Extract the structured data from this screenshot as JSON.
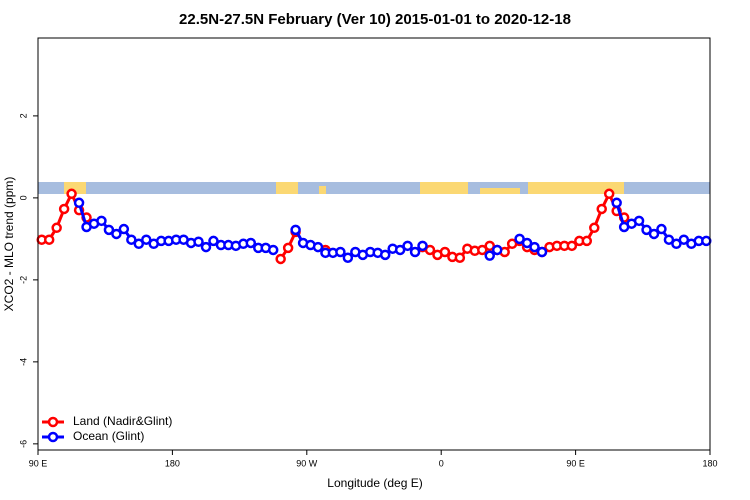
{
  "chart_data": {
    "type": "line",
    "title": "22.5N-27.5N February (Ver 10)   2015-01-01 to 2020-12-18",
    "x_label": "Longitude (deg E)",
    "y_label": "XCO2 - MLO trend (ppm)",
    "x": [
      92.5,
      97.5,
      102.5,
      107.5,
      112.5,
      117.5,
      122.5,
      127.5,
      132.5,
      137.5,
      142.5,
      147.5,
      152.5,
      157.5,
      162.5,
      167.5,
      172.5,
      177.5,
      182.5,
      187.5,
      192.5,
      197.5,
      202.5,
      207.5,
      212.5,
      217.5,
      222.5,
      227.5,
      232.5,
      237.5,
      242.5,
      247.5,
      252.5,
      257.5,
      262.5,
      267.5,
      272.5,
      277.5,
      282.5,
      287.5,
      292.5,
      297.5,
      302.5,
      307.5,
      312.5,
      317.5,
      322.5,
      327.5,
      332.5,
      337.5,
      342.5,
      347.5,
      352.5,
      357.5,
      362.5,
      367.5,
      372.5,
      377.5,
      382.5,
      387.5,
      392.5,
      397.5,
      402.5,
      407.5,
      412.5,
      417.5,
      422.5,
      427.5,
      432.5,
      437.5,
      442.5,
      447.5,
      452.5,
      457.5,
      462.5,
      467.5,
      472.5,
      477.5,
      482.5,
      487.5,
      492.5,
      497.5,
      502.5,
      507.5,
      512.5,
      517.5,
      522.5,
      527.5,
      532.5,
      537.5
    ],
    "series": [
      {
        "name": "Land (Nadir&Glint)",
        "color": "#ff0000",
        "values": [
          -1.02,
          -1.02,
          -0.73,
          -0.27,
          0.1,
          -0.3,
          -0.48,
          null,
          null,
          null,
          null,
          null,
          null,
          null,
          null,
          null,
          null,
          null,
          null,
          null,
          null,
          null,
          null,
          null,
          null,
          null,
          null,
          null,
          null,
          null,
          null,
          null,
          -1.49,
          -1.22,
          -0.83,
          null,
          null,
          null,
          -1.27,
          null,
          null,
          null,
          null,
          null,
          null,
          null,
          null,
          null,
          null,
          null,
          null,
          -1.2,
          -1.27,
          -1.39,
          -1.32,
          -1.44,
          -1.46,
          -1.24,
          -1.29,
          -1.27,
          -1.17,
          -1.27,
          -1.32,
          -1.12,
          -1.05,
          -1.2,
          -1.27,
          -1.32,
          -1.2,
          -1.17,
          -1.17,
          -1.17,
          -1.05,
          -1.05,
          -0.73,
          -0.27,
          0.1,
          -0.32,
          -0.48,
          null,
          null,
          null,
          null,
          null,
          null,
          null,
          null,
          null,
          null,
          null
        ]
      },
      {
        "name": "Ocean (Glint)",
        "color": "#0000ff",
        "values": [
          null,
          null,
          null,
          null,
          null,
          -0.12,
          -0.71,
          -0.63,
          -0.56,
          -0.78,
          -0.88,
          -0.76,
          -1.02,
          -1.12,
          -1.02,
          -1.12,
          -1.05,
          -1.05,
          -1.02,
          -1.02,
          -1.1,
          -1.07,
          -1.2,
          -1.05,
          -1.15,
          -1.15,
          -1.17,
          -1.12,
          -1.1,
          -1.22,
          -1.22,
          -1.27,
          null,
          null,
          -0.78,
          -1.1,
          -1.15,
          -1.2,
          -1.34,
          -1.34,
          -1.32,
          -1.46,
          -1.32,
          -1.39,
          -1.32,
          -1.34,
          -1.39,
          -1.24,
          -1.27,
          -1.17,
          -1.32,
          -1.17,
          null,
          null,
          null,
          null,
          null,
          null,
          null,
          null,
          -1.41,
          -1.27,
          null,
          null,
          -1.0,
          -1.1,
          -1.2,
          -1.32,
          null,
          null,
          null,
          null,
          null,
          null,
          null,
          null,
          null,
          -0.12,
          -0.71,
          -0.63,
          -0.56,
          -0.78,
          -0.88,
          -0.76,
          -1.02,
          -1.12,
          -1.02,
          -1.12,
          -1.05,
          -1.05
        ]
      }
    ],
    "xlim": [
      90,
      540
    ],
    "xticks": [
      {
        "value": 90,
        "label": "90 E"
      },
      180,
      {
        "value": 270,
        "label": "90 W"
      },
      {
        "value": 360,
        "label": "0"
      },
      {
        "value": 450,
        "label": "90 E"
      },
      {
        "value": 540,
        "label": "180"
      }
    ],
    "ylim": [
      -6.15,
      3.9
    ],
    "yticks": [
      -6,
      -4,
      -2,
      0,
      2
    ],
    "legend": "bottom-left"
  }
}
